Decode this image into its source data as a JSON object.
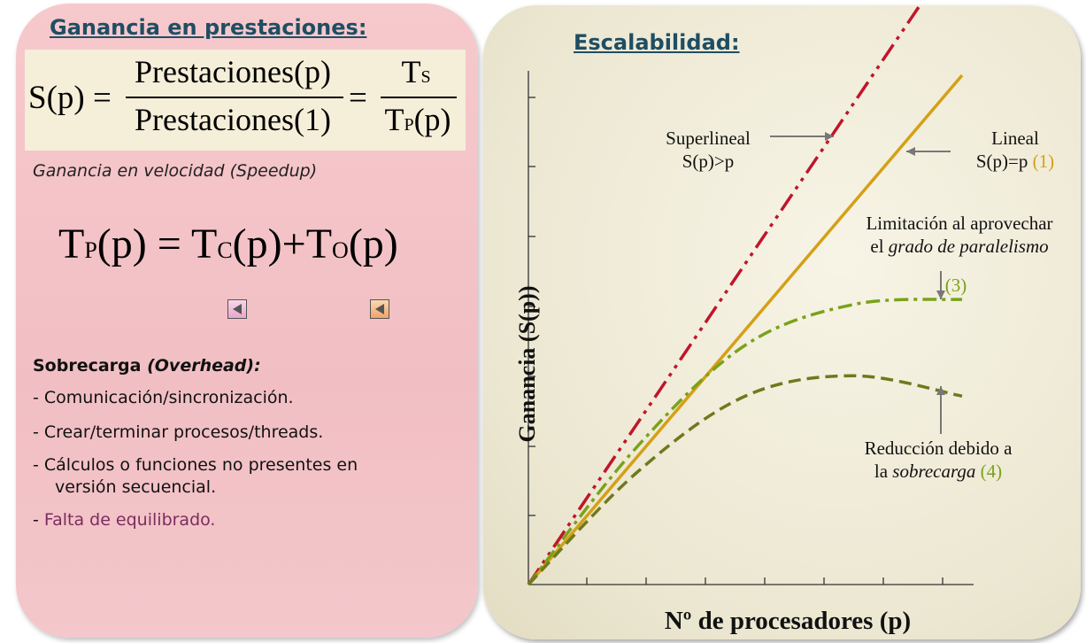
{
  "left": {
    "heading": "Ganancia en prestaciones:",
    "formula1": {
      "lhs": "S(p) =",
      "num1": "Prestaciones(p)",
      "den1": "Prestaciones(1)",
      "eq": "=",
      "num2_main": "T",
      "num2_sub": "S",
      "den2_main": "T",
      "den2_sub": "P",
      "den2_arg": "(p)"
    },
    "speedup_note": "Ganancia en velocidad (Speedup)",
    "formula2": {
      "t": "T",
      "sub_p": "P",
      "arg": "(p)",
      "eq": "=",
      "sub_c": "C",
      "plus": "+",
      "sub_o": "O"
    },
    "overhead_title": "Sobrecarga",
    "overhead_title_italic": " (Overhead):",
    "overhead_items": [
      "- Comunicación/sincronización.",
      "- Crear/terminar procesos/threads.",
      "- Cálculos o funciones no presentes en",
      "versión secuencial.",
      "Falta de equilibrado."
    ],
    "dash": "- "
  },
  "right": {
    "heading": "Escalabilidad:",
    "ylabel": "Ganancia (S(p))",
    "xlabel": "Nº de procesadores (p)",
    "superlineal": "Superlineal",
    "superlineal_cond": "S(p)>p",
    "lineal": "Lineal",
    "lineal_cond": "S(p)=p",
    "lineal_num": "(1)",
    "limit_line1": "Limitación al aprovechar",
    "limit_line2_a": "el ",
    "limit_line2_b": "grado de paralelismo",
    "limit_num": "(3)",
    "reduc_line1": "Reducción debido a",
    "reduc_line2_a": "la ",
    "reduc_line2_b": "sobrecarga",
    "reduc_num": "(4)"
  },
  "colors": {
    "heading": "#1f4e63",
    "superlineal": "#c0152a",
    "lineal": "#d4a017",
    "limit": "#7aa21a",
    "reduc": "#6e7a1c",
    "purple_text": "#7b2d5e"
  },
  "chart_data": {
    "type": "line",
    "xlabel": "Nº de procesadores (p)",
    "ylabel": "Ganancia (S(p))",
    "grid": false,
    "series": [
      {
        "name": "Superlineal",
        "style": "dash-dot-dot",
        "color": "#c0152a",
        "x": [
          0,
          1
        ],
        "y": [
          0,
          1.26
        ]
      },
      {
        "name": "Lineal",
        "style": "solid",
        "color": "#d4a017",
        "x": [
          0,
          1
        ],
        "y": [
          0,
          1
        ]
      },
      {
        "name": "Limitación al aprovechar el grado de paralelismo",
        "style": "dash-dot",
        "color": "#7aa21a",
        "x": [
          0,
          0.25,
          0.5,
          0.75,
          1
        ],
        "y": [
          0,
          0.27,
          0.47,
          0.55,
          0.56
        ]
      },
      {
        "name": "Reducción debido a la sobrecarga",
        "style": "dashed",
        "color": "#6e7a1c",
        "x": [
          0,
          0.25,
          0.5,
          0.75,
          1
        ],
        "y": [
          0,
          0.22,
          0.37,
          0.41,
          0.37
        ]
      }
    ]
  }
}
